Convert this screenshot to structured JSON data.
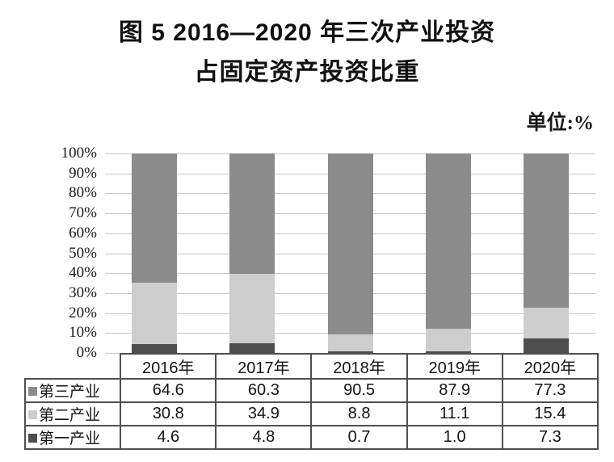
{
  "title": {
    "line1": "图 5  2016—2020 年三次产业投资",
    "line2": "占固定资产投资比重"
  },
  "unit_label": "单位:%",
  "chart_data": {
    "type": "bar",
    "stacked": true,
    "stack_total": 100,
    "title": "图 5 2016—2020 年三次产业投资占固定资产投资比重",
    "unit": "%",
    "categories": [
      "2016年",
      "2017年",
      "2018年",
      "2019年",
      "2020年"
    ],
    "series": [
      {
        "name": "第三产业",
        "color": "#8b8b8b",
        "values": [
          "64.6",
          "60.3",
          "90.5",
          "87.9",
          "77.3"
        ]
      },
      {
        "name": "第二产业",
        "color": "#cdcdcd",
        "values": [
          "30.8",
          "34.9",
          "8.8",
          "11.1",
          "15.4"
        ]
      },
      {
        "name": "第一产业",
        "color": "#4e4e4e",
        "values": [
          "4.6",
          "4.8",
          "0.7",
          "1.0",
          "7.3"
        ]
      }
    ],
    "y_axis": {
      "min": 0,
      "max": 100,
      "step": 10,
      "tick_suffix": "%"
    },
    "grid": true,
    "legend_position": "table-rows-left"
  },
  "style": {
    "gridline_color": "#c6c6c6",
    "table_border_color": "#4f4f4f",
    "series_colors": {
      "第三产业": "#8b8b8b",
      "第二产业": "#cdcdcd",
      "第一产业": "#4e4e4e"
    }
  }
}
